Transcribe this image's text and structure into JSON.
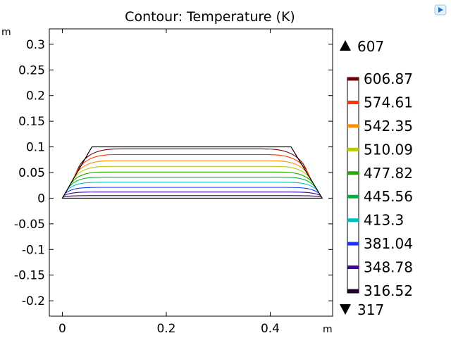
{
  "chart_data": {
    "type": "contour",
    "title": "Contour: Temperature (K)",
    "x_unit": "m",
    "y_unit": "m",
    "xlim": [
      -0.025,
      0.52
    ],
    "ylim": [
      -0.23,
      0.33
    ],
    "x_ticks": [
      {
        "value": 0,
        "label": "0"
      },
      {
        "value": 0.2,
        "label": "0.2"
      },
      {
        "value": 0.4,
        "label": "0.4"
      }
    ],
    "y_ticks": [
      {
        "value": 0.3,
        "label": "0.3"
      },
      {
        "value": 0.25,
        "label": "0.25"
      },
      {
        "value": 0.2,
        "label": "0.2"
      },
      {
        "value": 0.15,
        "label": "0.15"
      },
      {
        "value": 0.1,
        "label": "0.1"
      },
      {
        "value": 0.05,
        "label": "0.05"
      },
      {
        "value": 0,
        "label": "0"
      },
      {
        "value": -0.05,
        "label": "-0.05"
      },
      {
        "value": -0.1,
        "label": "-0.1"
      },
      {
        "value": -0.15,
        "label": "-0.15"
      },
      {
        "value": -0.2,
        "label": "-0.2"
      }
    ],
    "domain": {
      "bottom_left": [
        0,
        0
      ],
      "bottom_right": [
        0.5,
        0
      ],
      "top_right": [
        0.44,
        0.1
      ],
      "top_left": [
        0.057,
        0.1
      ]
    },
    "contours": [
      {
        "level": 606.87,
        "label": "606.87",
        "color": "#6e0000",
        "y": 0.096
      },
      {
        "level": 574.61,
        "label": "574.61",
        "color": "#ff3300",
        "y": 0.085
      },
      {
        "level": 542.35,
        "label": "542.35",
        "color": "#ff8c00",
        "y": 0.073
      },
      {
        "level": 510.09,
        "label": "510.09",
        "color": "#b5cc00",
        "y": 0.062
      },
      {
        "level": 477.82,
        "label": "477.82",
        "color": "#22aa00",
        "y": 0.051
      },
      {
        "level": 445.56,
        "label": "445.56",
        "color": "#00b33c",
        "y": 0.041
      },
      {
        "level": 413.3,
        "label": "413.3",
        "color": "#00bfbf",
        "y": 0.031
      },
      {
        "level": 381.04,
        "label": "381.04",
        "color": "#1f33ff",
        "y": 0.021
      },
      {
        "level": 348.78,
        "label": "348.78",
        "color": "#4400aa",
        "y": 0.012
      },
      {
        "level": 316.52,
        "label": "316.52",
        "color": "#2a0033",
        "y": 0.005
      }
    ],
    "max_label": "607",
    "min_label": "317"
  }
}
